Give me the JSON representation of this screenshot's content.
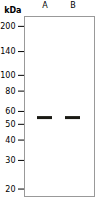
{
  "chart_data": {
    "type": "scatter",
    "marker": "band",
    "ylabel": "kDa",
    "categories": [
      "A",
      "B"
    ],
    "values": [
      55,
      55
    ],
    "color": "#1a1a14",
    "log": "y",
    "ylim": [
      18,
      230
    ],
    "yticks": [
      200,
      140,
      100,
      80,
      60,
      50,
      40,
      30,
      20
    ]
  }
}
